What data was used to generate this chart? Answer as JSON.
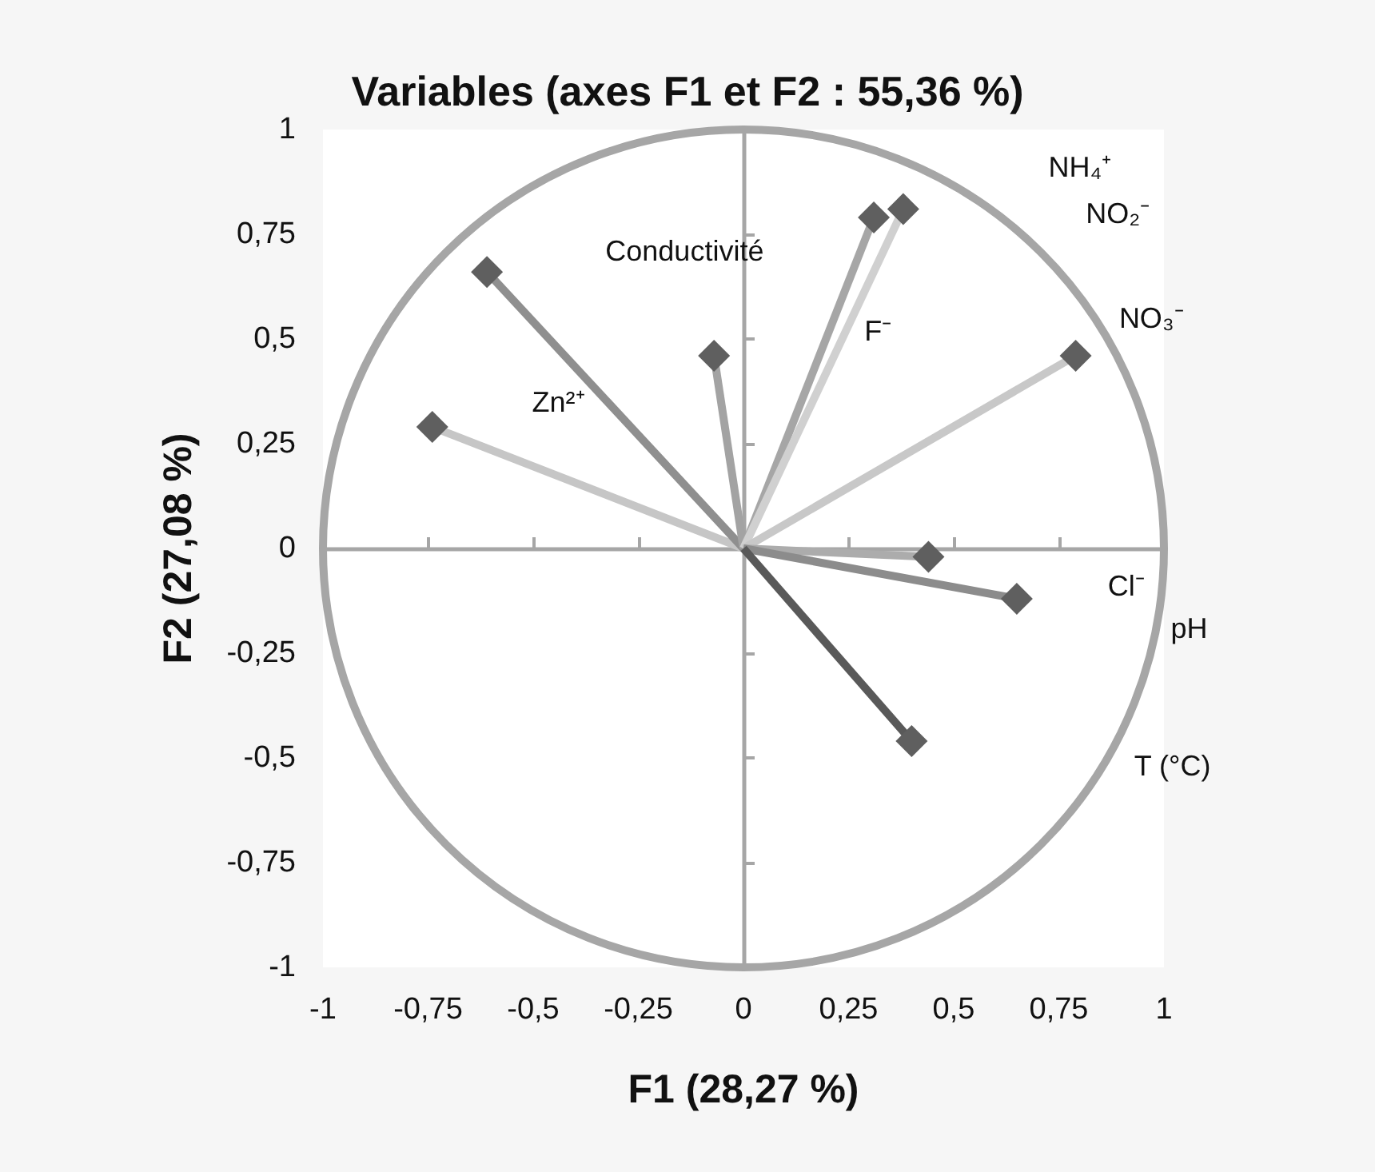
{
  "chart_data": {
    "type": "line",
    "title": "Variables (axes F1 et F2 : 55,36 %)",
    "xlabel": "F1 (28,27 %)",
    "ylabel": "F2 (27,08 %)",
    "xlim": [
      -1,
      1
    ],
    "xticks": [
      -1,
      {
        "value": -0.75,
        "label": "-0,75"
      },
      {
        "value": -0.5,
        "label": "-0,5"
      },
      {
        "value": -0.25,
        "label": "-0,25"
      },
      0,
      {
        "value": 0.25,
        "label": "0,25"
      },
      {
        "value": 0.5,
        "label": "0,5"
      },
      {
        "value": 0.75,
        "label": "0,75"
      },
      1
    ],
    "ylim": [
      -1,
      1
    ],
    "yticks": [
      -1,
      {
        "value": -0.75,
        "label": "-0,75"
      },
      {
        "value": -0.5,
        "label": "-0,5"
      },
      {
        "value": -0.25,
        "label": "-0,25"
      },
      0,
      {
        "value": 0.25,
        "label": "0,25"
      },
      {
        "value": 0.5,
        "label": "0,5"
      },
      {
        "value": 0.75,
        "label": "0,75"
      },
      1
    ],
    "marker": "diamond",
    "series": [
      {
        "x": [
          0,
          -0.74
        ],
        "values": [
          0,
          0.29
        ],
        "color": "#c6c6c6",
        "colors": [
          null,
          "#5f5f5f"
        ]
      },
      {
        "x": [
          0,
          -0.61
        ],
        "values": [
          0,
          0.66
        ],
        "color": "#8f8f8f",
        "colors": [
          null,
          "#5f5f5f"
        ]
      },
      {
        "x": [
          0,
          -0.07
        ],
        "values": [
          0,
          0.46
        ],
        "color": "#a3a3a3",
        "colors": [
          null,
          "#5f5f5f"
        ]
      },
      {
        "x": [
          0,
          0.31
        ],
        "values": [
          0,
          0.79
        ],
        "color": "#a6a6a6",
        "colors": [
          null,
          "#5f5f5f"
        ]
      },
      {
        "x": [
          0,
          0.38
        ],
        "values": [
          0,
          0.81
        ],
        "color": "#d0d0d0",
        "colors": [
          null,
          "#5f5f5f"
        ]
      },
      {
        "x": [
          0,
          0.79
        ],
        "values": [
          0,
          0.46
        ],
        "color": "#c8c8c8",
        "colors": [
          null,
          "#5f5f5f"
        ]
      },
      {
        "x": [
          0,
          0.44
        ],
        "values": [
          0,
          -0.02
        ],
        "color": "#acacac",
        "colors": [
          null,
          "#5f5f5f"
        ]
      },
      {
        "x": [
          0,
          0.65
        ],
        "values": [
          0,
          -0.12
        ],
        "color": "#8c8c8c",
        "colors": [
          null,
          "#5f5f5f"
        ]
      },
      {
        "x": [
          0,
          0.4
        ],
        "values": [
          0,
          -0.46
        ],
        "color": "#595959",
        "colors": [
          null,
          "#5f5f5f"
        ]
      }
    ],
    "annotations": [
      "Conductivité",
      "Zn²⁺",
      "F⁻",
      "NH₄⁺",
      "NO₂⁻",
      "NO₃⁻",
      "Cl⁻",
      "pH",
      "T (°C)"
    ]
  }
}
